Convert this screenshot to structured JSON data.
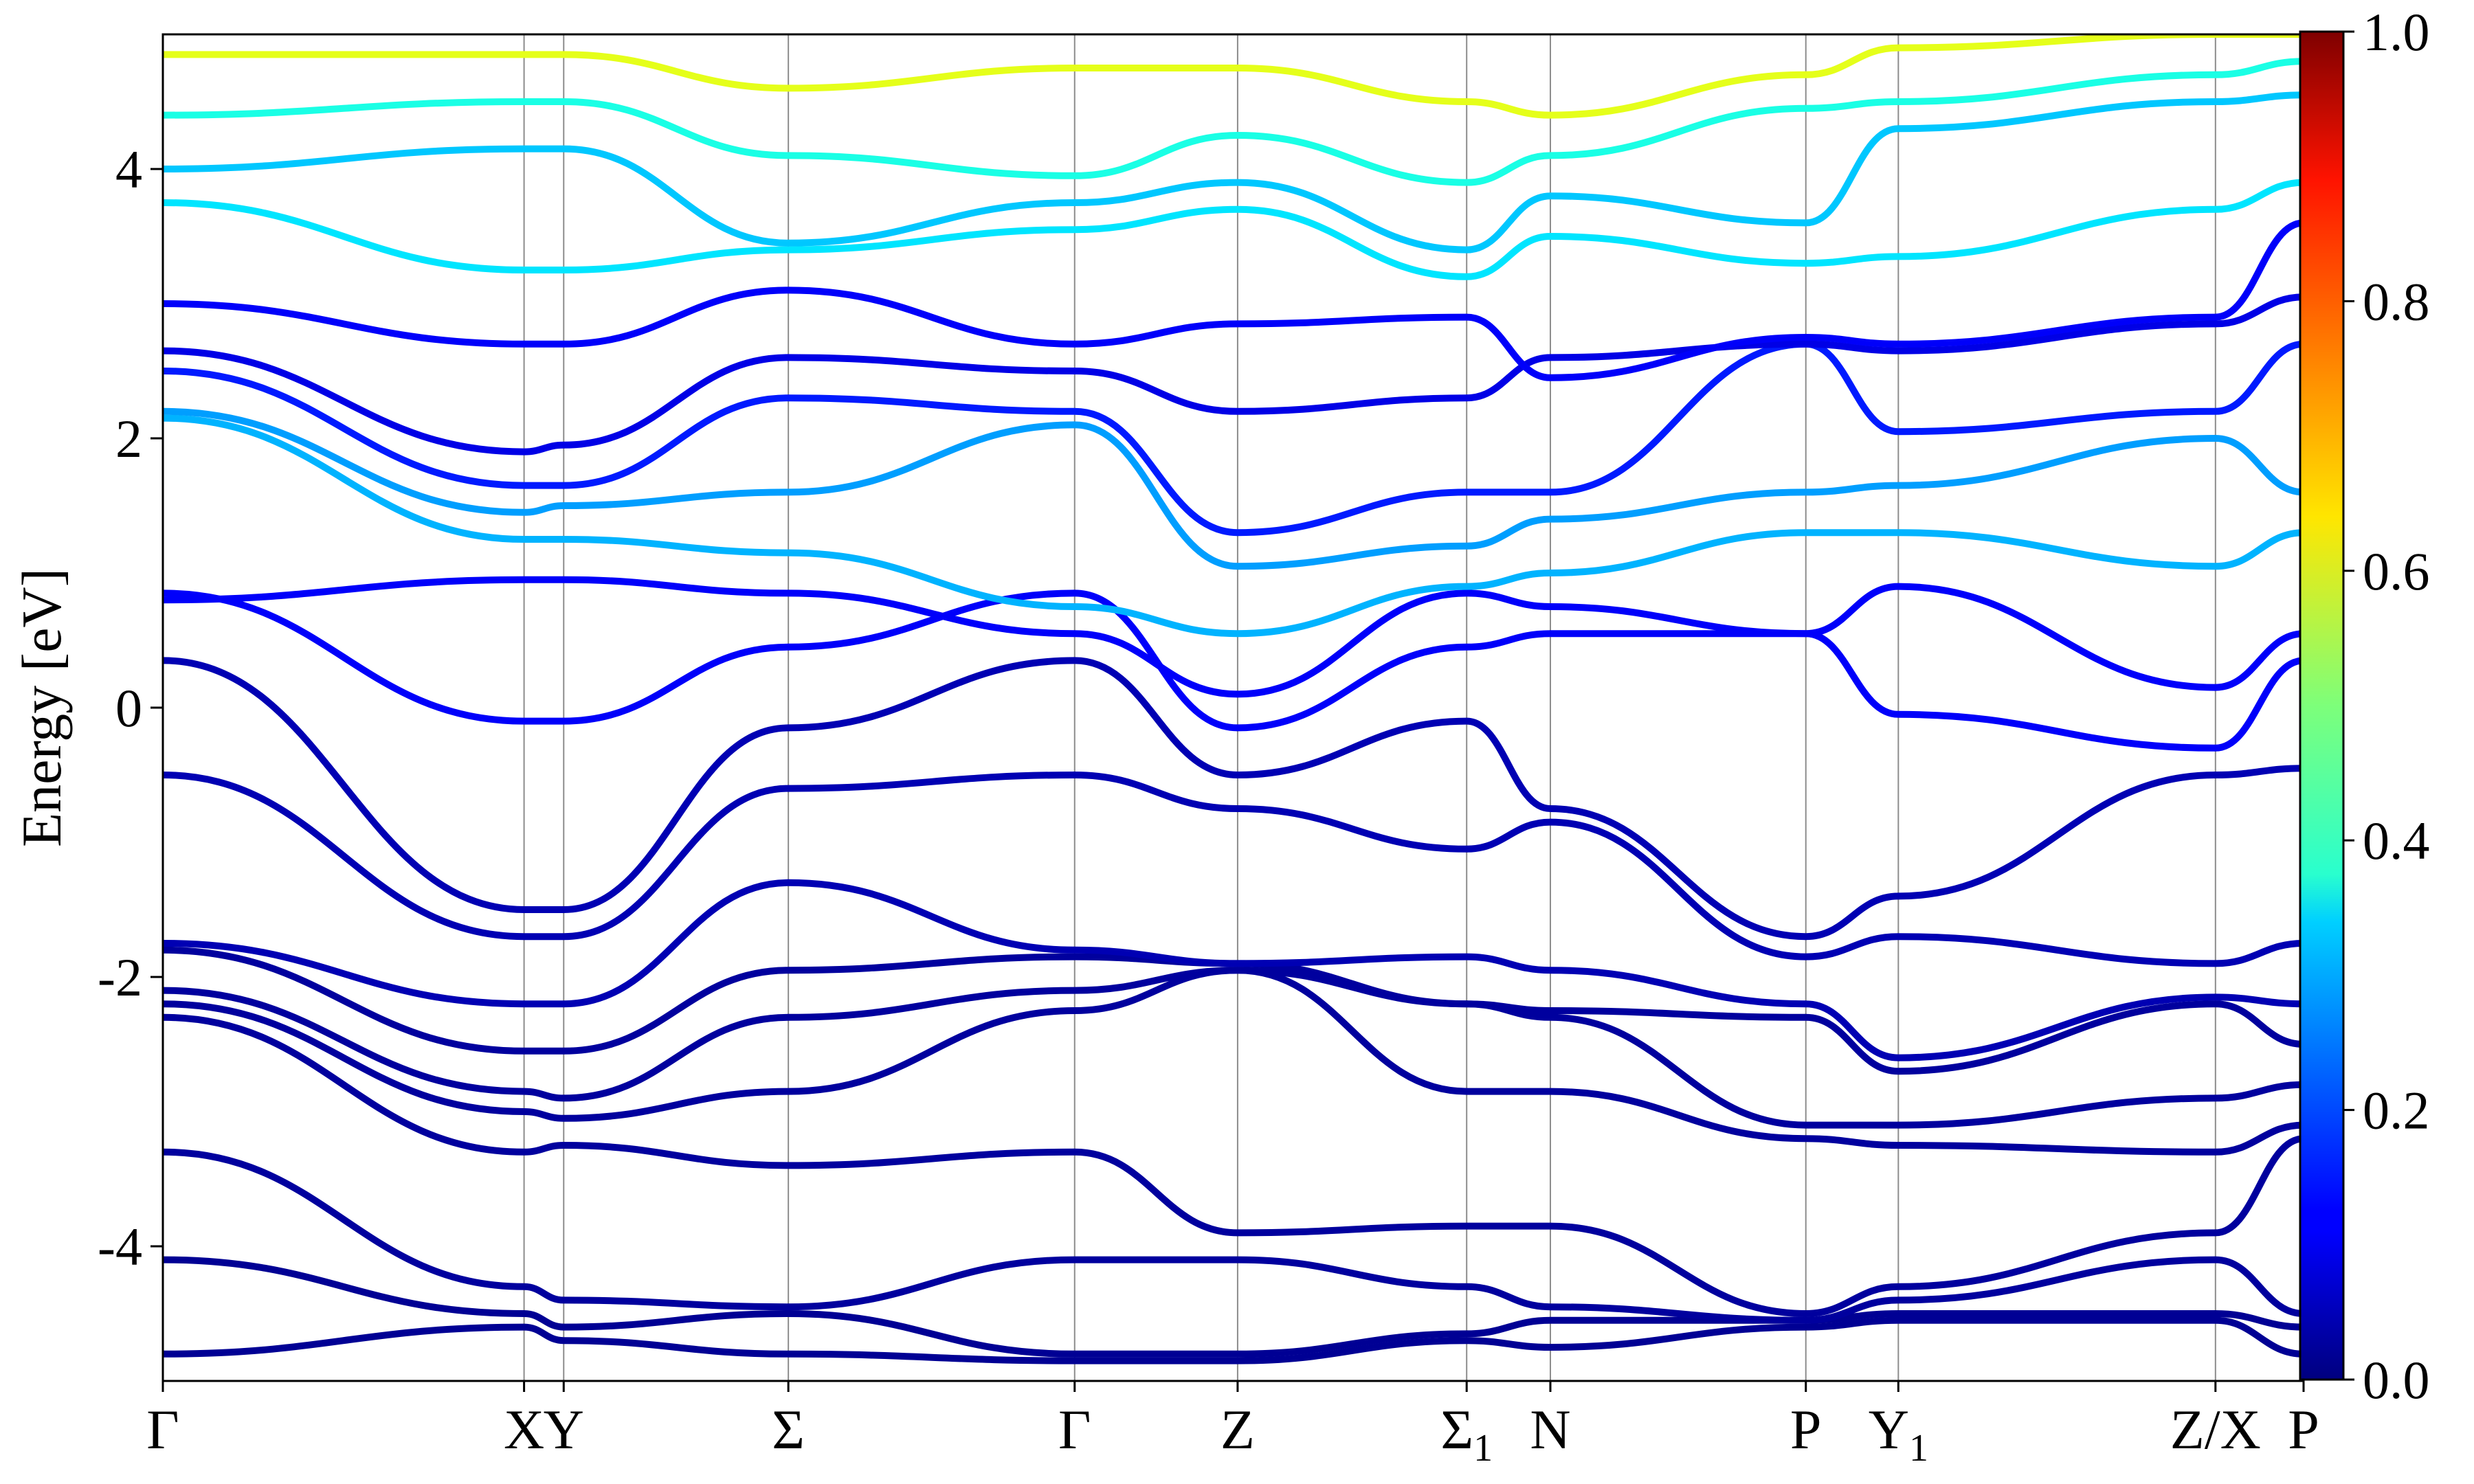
{
  "chart_data": {
    "type": "line",
    "ylabel": "Energy [eV]",
    "xlabel": "",
    "title": "",
    "ylim": [
      -5,
      5
    ],
    "y_ticks": [
      "-4",
      "-2",
      "0",
      "2",
      "4"
    ],
    "y_tick_values": [
      -4,
      -2,
      0,
      2,
      4
    ],
    "k_points": [
      {
        "label": "Γ",
        "sub": "",
        "k": 0
      },
      {
        "label": "X",
        "sub": "",
        "k": 4.1
      },
      {
        "label": "Y",
        "sub": "",
        "k": 4.55
      },
      {
        "label": "Σ",
        "sub": "",
        "k": 7.1
      },
      {
        "label": "Γ",
        "sub": "",
        "k": 10.35
      },
      {
        "label": "Z",
        "sub": "",
        "k": 12.2
      },
      {
        "label": "Σ",
        "sub": "1",
        "k": 14.8
      },
      {
        "label": "N",
        "sub": "",
        "k": 15.75
      },
      {
        "label": "P",
        "sub": "",
        "k": 18.65
      },
      {
        "label": "Y",
        "sub": "1",
        "k": 19.7
      },
      {
        "label": "Z/X",
        "sub": "",
        "k": 23.3
      },
      {
        "label": "P",
        "sub": "",
        "k": 24.3
      }
    ],
    "xlim": [
      0,
      24.3
    ],
    "colorbar": {
      "min": 0.0,
      "max": 1.0,
      "ticks": [
        "0.0",
        "0.2",
        "0.4",
        "0.6",
        "0.8",
        "1.0"
      ],
      "tick_values": [
        0.0,
        0.2,
        0.4,
        0.6,
        0.8,
        1.0
      ],
      "colormap": "jet"
    },
    "bands": [
      {
        "y": [
          -4.8,
          -4.6,
          -4.7,
          -4.8,
          -4.85,
          -4.85,
          -4.7,
          -4.75,
          -4.6,
          -4.55,
          -4.55,
          -4.8
        ],
        "w": 0.02
      },
      {
        "y": [
          -4.1,
          -4.5,
          -4.6,
          -4.5,
          -4.8,
          -4.8,
          -4.65,
          -4.55,
          -4.55,
          -4.5,
          -4.5,
          -4.6
        ],
        "w": 0.02
      },
      {
        "y": [
          -3.3,
          -4.3,
          -4.4,
          -4.45,
          -4.1,
          -4.1,
          -4.3,
          -4.45,
          -4.55,
          -4.4,
          -4.1,
          -4.5
        ],
        "w": 0.03
      },
      {
        "y": [
          -2.3,
          -3.3,
          -3.25,
          -3.4,
          -3.3,
          -3.9,
          -3.85,
          -3.85,
          -4.5,
          -4.3,
          -3.9,
          -3.2
        ],
        "w": 0.03
      },
      {
        "y": [
          -2.2,
          -3.0,
          -3.05,
          -2.85,
          -2.25,
          -1.95,
          -2.85,
          -2.85,
          -3.2,
          -3.25,
          -3.3,
          -3.1
        ],
        "w": 0.03
      },
      {
        "y": [
          -2.1,
          -2.85,
          -2.9,
          -2.3,
          -2.1,
          -1.95,
          -2.2,
          -2.3,
          -3.1,
          -3.1,
          -2.9,
          -2.8
        ],
        "w": 0.03
      },
      {
        "y": [
          -1.8,
          -2.55,
          -2.55,
          -1.95,
          -1.85,
          -1.9,
          -2.2,
          -2.25,
          -2.3,
          -2.7,
          -2.2,
          -2.5
        ],
        "w": 0.03
      },
      {
        "y": [
          -1.75,
          -2.2,
          -2.2,
          -1.3,
          -1.8,
          -1.9,
          -1.85,
          -1.95,
          -2.2,
          -2.6,
          -2.15,
          -2.2
        ],
        "w": 0.05
      },
      {
        "y": [
          -0.5,
          -1.7,
          -1.7,
          -0.6,
          -0.5,
          -0.75,
          -1.05,
          -0.85,
          -1.85,
          -1.7,
          -1.9,
          -1.75
        ],
        "w": 0.05
      },
      {
        "y": [
          0.35,
          -1.5,
          -1.5,
          -0.15,
          0.35,
          -0.5,
          -0.1,
          -0.75,
          -1.7,
          -1.4,
          -0.5,
          -0.45
        ],
        "w": 0.05
      },
      {
        "y": [
          0.85,
          -0.1,
          -0.1,
          0.45,
          0.85,
          -0.15,
          0.45,
          0.55,
          0.55,
          -0.05,
          -0.3,
          0.35
        ],
        "w": 0.12
      },
      {
        "y": [
          0.8,
          0.95,
          0.95,
          0.85,
          0.55,
          0.1,
          0.85,
          0.75,
          0.55,
          0.9,
          0.15,
          0.55
        ],
        "w": 0.12
      },
      {
        "y": [
          2.15,
          1.25,
          1.25,
          1.15,
          0.75,
          0.55,
          0.9,
          1.0,
          1.3,
          1.3,
          1.05,
          1.3
        ],
        "w": 0.3
      },
      {
        "y": [
          2.2,
          1.45,
          1.5,
          1.6,
          2.1,
          1.05,
          1.2,
          1.4,
          1.6,
          1.65,
          2.0,
          1.6
        ],
        "w": 0.28
      },
      {
        "y": [
          2.5,
          1.65,
          1.65,
          2.3,
          2.2,
          1.3,
          1.6,
          1.6,
          2.7,
          2.05,
          2.2,
          2.7
        ],
        "w": 0.15
      },
      {
        "y": [
          2.65,
          1.9,
          1.95,
          2.6,
          2.5,
          2.2,
          2.3,
          2.6,
          2.7,
          2.65,
          2.85,
          3.05
        ],
        "w": 0.1
      },
      {
        "y": [
          3.0,
          2.7,
          2.7,
          3.1,
          2.7,
          2.85,
          2.9,
          2.45,
          2.75,
          2.7,
          2.9,
          3.6
        ],
        "w": 0.12
      },
      {
        "y": [
          3.75,
          3.25,
          3.25,
          3.4,
          3.55,
          3.7,
          3.2,
          3.5,
          3.3,
          3.35,
          3.7,
          3.9
        ],
        "w": 0.35
      },
      {
        "y": [
          4.0,
          4.15,
          4.15,
          3.45,
          3.75,
          3.9,
          3.4,
          3.8,
          3.6,
          4.3,
          4.5,
          4.55
        ],
        "w": 0.32
      },
      {
        "y": [
          4.4,
          4.5,
          4.5,
          4.1,
          3.95,
          4.25,
          3.9,
          4.1,
          4.45,
          4.5,
          4.7,
          4.8
        ],
        "w": 0.4
      },
      {
        "y": [
          4.85,
          4.85,
          4.85,
          4.6,
          4.75,
          4.75,
          4.5,
          4.4,
          4.7,
          4.9,
          5.0,
          5.0
        ],
        "w": 0.6
      }
    ]
  }
}
